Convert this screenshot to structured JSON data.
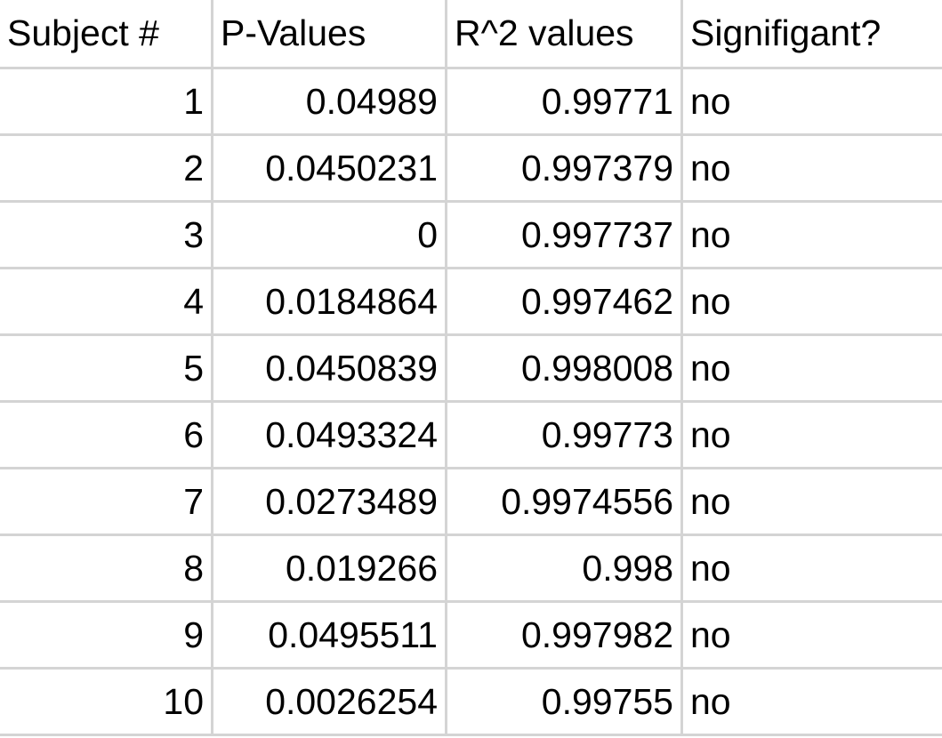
{
  "table": {
    "header": [
      "Subject #",
      "P-Values",
      "R^2 values",
      "Signifigant?"
    ],
    "rows": [
      [
        "1",
        "0.04989",
        "0.99771",
        "no"
      ],
      [
        "2",
        "0.0450231",
        "0.997379",
        "no"
      ],
      [
        "3",
        "0",
        "0.997737",
        "no"
      ],
      [
        "4",
        "0.0184864",
        "0.997462",
        "no"
      ],
      [
        "5",
        "0.0450839",
        "0.998008",
        "no"
      ],
      [
        "6",
        "0.0493324",
        "0.99773",
        "no"
      ],
      [
        "7",
        "0.0273489",
        "0.9974556",
        "no"
      ],
      [
        "8",
        "0.019266",
        "0.998",
        "no"
      ],
      [
        "9",
        "0.0495511",
        "0.997982",
        "no"
      ],
      [
        "10",
        "0.0026254",
        "0.99755",
        "no"
      ]
    ]
  }
}
